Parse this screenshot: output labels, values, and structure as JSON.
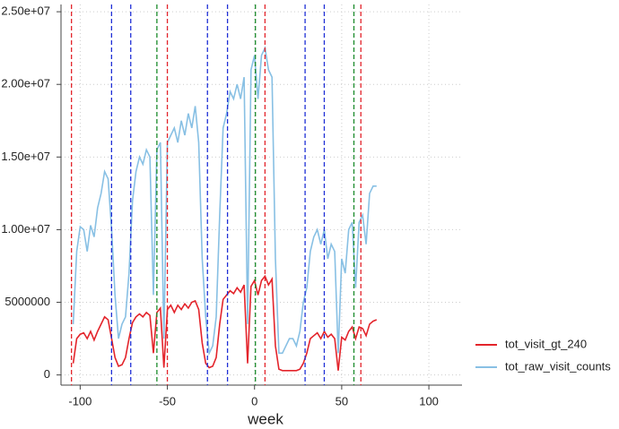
{
  "chart_data": {
    "type": "line",
    "x_label": "week",
    "x": [
      -104,
      -102,
      -100,
      -98,
      -96,
      -94,
      -92,
      -90,
      -88,
      -86,
      -84,
      -82,
      -80,
      -78,
      -76,
      -74,
      -72,
      -70,
      -68,
      -66,
      -64,
      -62,
      -60,
      -58,
      -56,
      -54,
      -52,
      -50,
      -48,
      -46,
      -44,
      -42,
      -40,
      -38,
      -36,
      -34,
      -32,
      -30,
      -28,
      -26,
      -24,
      -22,
      -20,
      -18,
      -16,
      -14,
      -12,
      -10,
      -8,
      -6,
      -4,
      -2,
      0,
      2,
      4,
      6,
      8,
      10,
      12,
      14,
      16,
      18,
      20,
      22,
      24,
      26,
      28,
      30,
      32,
      34,
      36,
      38,
      40,
      42,
      44,
      46,
      48,
      50,
      52,
      54,
      56,
      58,
      60,
      62,
      64,
      66,
      68,
      70
    ],
    "series": [
      {
        "name": "tot_visit_gt_240",
        "color": "#e3242b",
        "values": [
          800000.0,
          2500000.0,
          2800000.0,
          2900000.0,
          2500000.0,
          3000000.0,
          2400000.0,
          3000000.0,
          3500000.0,
          4000000.0,
          3800000.0,
          2500000.0,
          1200000.0,
          600000.0,
          700000.0,
          1200000.0,
          2500000.0,
          3600000.0,
          4000000.0,
          4200000.0,
          4000000.0,
          4300000.0,
          4100000.0,
          1500000.0,
          4300000.0,
          4600000.0,
          500000.0,
          4500000.0,
          4800000.0,
          4300000.0,
          4800000.0,
          4500000.0,
          4900000.0,
          4600000.0,
          5000000.0,
          5100000.0,
          4500000.0,
          2200000.0,
          800000.0,
          500000.0,
          600000.0,
          1200000.0,
          3500000.0,
          5200000.0,
          5500000.0,
          5800000.0,
          5600000.0,
          6000000.0,
          5700000.0,
          6200000.0,
          800000.0,
          6100000.0,
          6500000.0,
          5500000.0,
          6500000.0,
          6800000.0,
          6200000.0,
          6600000.0,
          2000000.0,
          400000.0,
          300000.0,
          300000.0,
          300000.0,
          300000.0,
          300000.0,
          400000.0,
          800000.0,
          1500000.0,
          2500000.0,
          2700000.0,
          2900000.0,
          2500000.0,
          3000000.0,
          2600000.0,
          2800000.0,
          2500000.0,
          300000.0,
          2600000.0,
          2400000.0,
          3000000.0,
          3300000.0,
          2500000.0,
          3300000.0,
          3200000.0,
          2700000.0,
          3500000.0,
          3700000.0,
          3800000.0
        ]
      },
      {
        "name": "tot_raw_visit_counts",
        "color": "#88c0e4",
        "values": [
          3500000.0,
          8500000.0,
          10200000.0,
          10000000.0,
          8500000.0,
          10300000.0,
          9500000.0,
          11500000.0,
          12500000.0,
          14000000.0,
          13500000.0,
          10000000.0,
          5500000.0,
          2500000.0,
          3500000.0,
          4000000.0,
          7000000.0,
          12000000.0,
          14000000.0,
          15000000.0,
          14500000.0,
          15500000.0,
          15000000.0,
          5500000.0,
          15500000.0,
          16000000.0,
          2500000.0,
          16000000.0,
          16500000.0,
          17000000.0,
          16000000.0,
          17500000.0,
          16500000.0,
          18000000.0,
          17000000.0,
          18500000.0,
          16000000.0,
          8000000.0,
          4000000.0,
          1500000.0,
          2000000.0,
          4000000.0,
          11000000.0,
          17000000.0,
          18000000.0,
          19500000.0,
          19000000.0,
          20000000.0,
          19000000.0,
          20500000.0,
          3500000.0,
          21000000.0,
          22000000.0,
          19000000.0,
          22000000.0,
          22500000.0,
          21000000.0,
          20500000.0,
          8000000.0,
          1500000.0,
          1500000.0,
          2000000.0,
          2500000.0,
          2500000.0,
          2000000.0,
          3000000.0,
          5000000.0,
          6000000.0,
          8500000.0,
          9500000.0,
          10000000.0,
          9000000.0,
          10000000.0,
          8000000.0,
          9000000.0,
          8500000.0,
          1500000.0,
          8000000.0,
          7000000.0,
          10000000.0,
          10500000.0,
          6000000.0,
          10500000.0,
          11000000.0,
          9000000.0,
          12500000.0,
          13000000.0,
          13000000.0
        ]
      }
    ],
    "reference_lines": [
      {
        "x": -105,
        "color": "#e3242b"
      },
      {
        "x": -50,
        "color": "#e3242b"
      },
      {
        "x": 6,
        "color": "#e3242b"
      },
      {
        "x": 61,
        "color": "#e3242b"
      },
      {
        "x": -82,
        "color": "#1f2fd6"
      },
      {
        "x": -71,
        "color": "#1f2fd6"
      },
      {
        "x": -27,
        "color": "#1f2fd6"
      },
      {
        "x": -15.5,
        "color": "#1f2fd6"
      },
      {
        "x": 29,
        "color": "#1f2fd6"
      },
      {
        "x": 40,
        "color": "#1f2fd6"
      },
      {
        "x": -56,
        "color": "#1a8a2a"
      },
      {
        "x": 0.5,
        "color": "#1a8a2a"
      },
      {
        "x": 57,
        "color": "#1a8a2a"
      }
    ],
    "xlim": [
      -111,
      119
    ],
    "xticks": [
      -100,
      -50,
      0,
      50,
      100
    ],
    "ylim": [
      -700000,
      25500000
    ],
    "yticks": [
      0,
      {
        "value": 5000000,
        "label": "5000000"
      },
      {
        "value": 10000000,
        "label": "1.00e+07"
      },
      {
        "value": 15000000,
        "label": "1.50e+07"
      },
      {
        "value": 20000000,
        "label": "2.00e+07"
      },
      {
        "value": 25000000,
        "label": "2.50e+07"
      }
    ],
    "grid": true,
    "legend": "right"
  }
}
